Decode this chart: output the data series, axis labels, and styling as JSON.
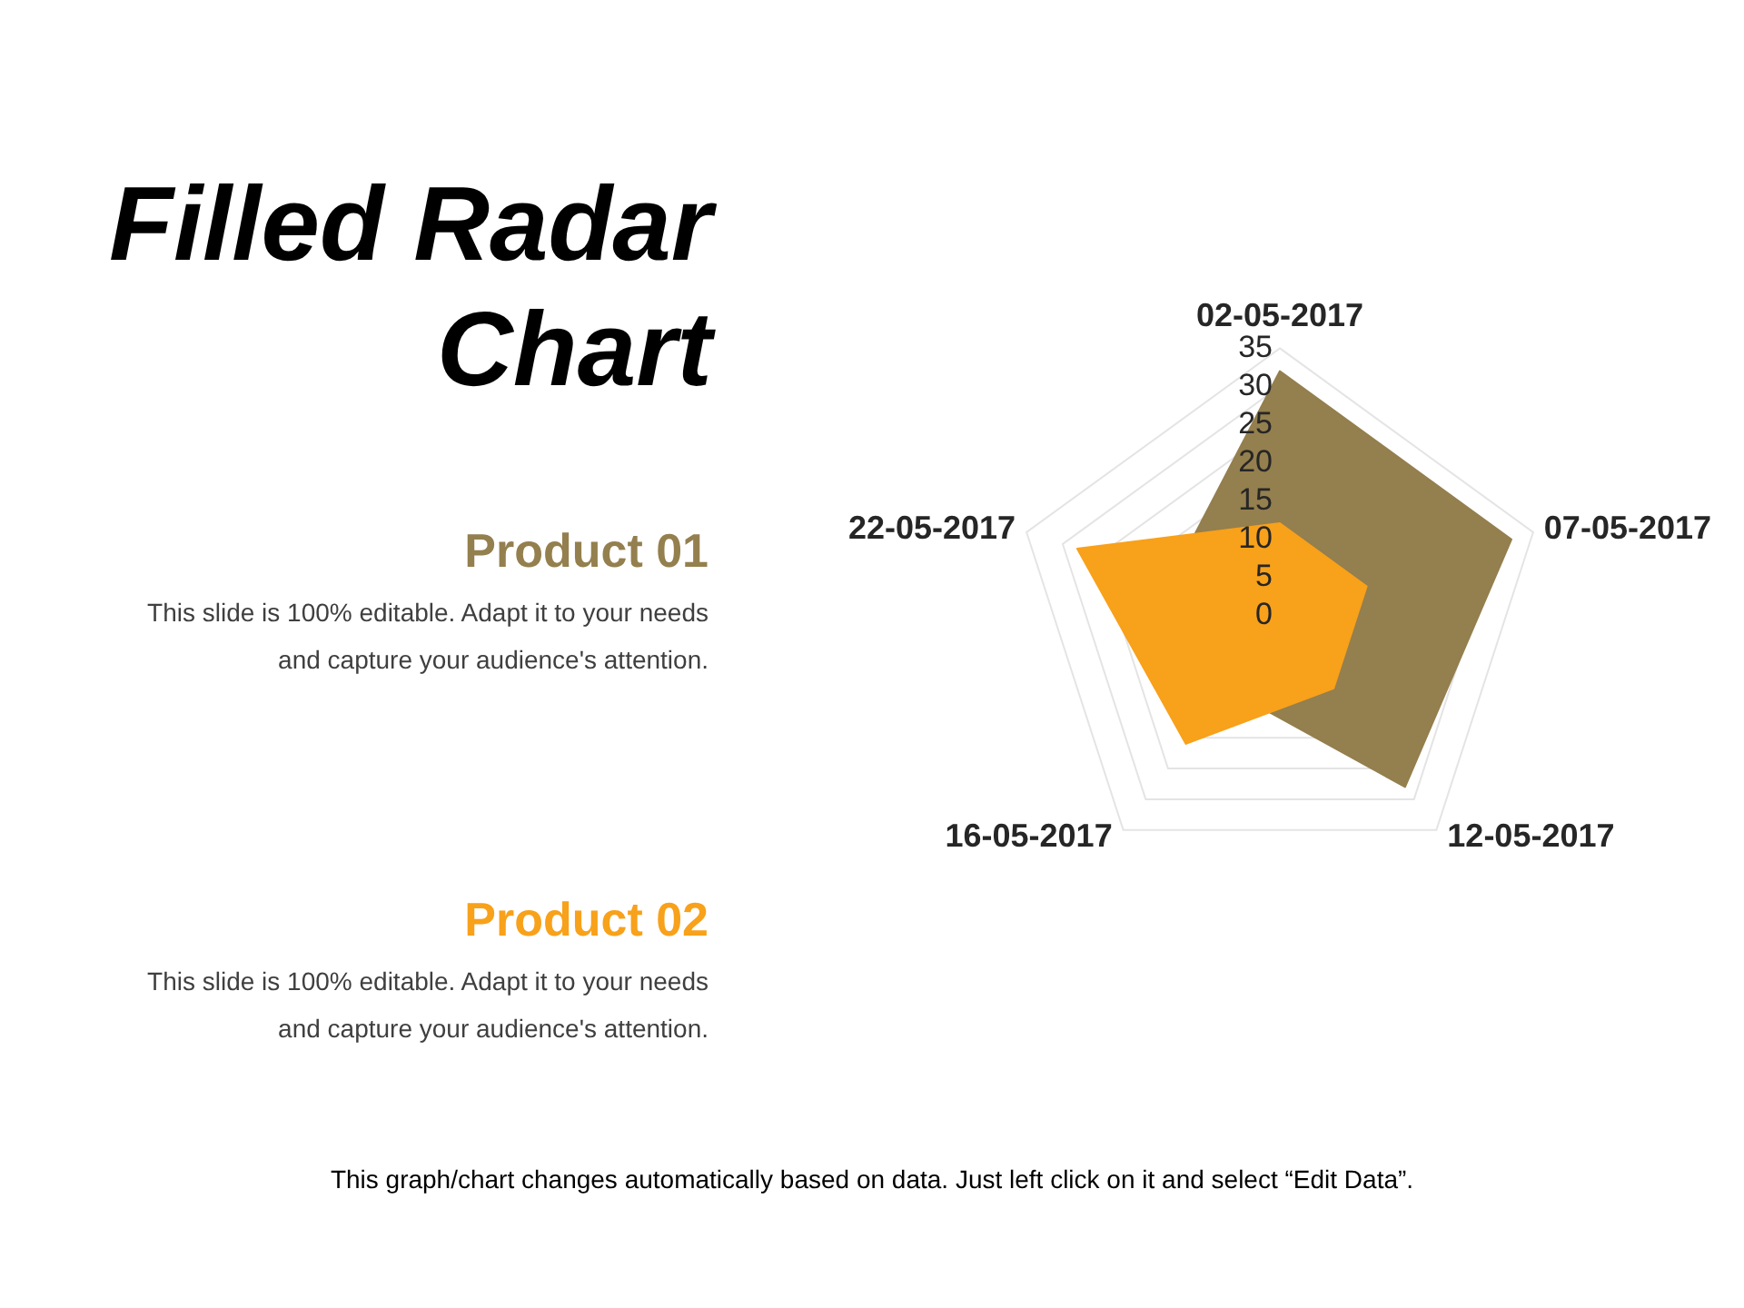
{
  "chart_data": {
    "type": "radar",
    "title": "Filled Radar Chart",
    "categories": [
      "02-05-2017",
      "07-05-2017",
      "12-05-2017",
      "16-05-2017",
      "22-05-2017"
    ],
    "series": [
      {
        "name": "Product 01",
        "color": "#947f4e",
        "values": [
          32,
          32,
          28,
          12,
          15
        ]
      },
      {
        "name": "Product 02",
        "color": "#f8a11a",
        "values": [
          12,
          12,
          12,
          21,
          28
        ]
      }
    ],
    "ylim": [
      0,
      35
    ],
    "yticks": [
      0,
      5,
      10,
      15,
      20,
      25,
      30,
      35
    ],
    "grid": true,
    "legend": "left",
    "annotations": [
      "This slide is 100% editable. Adapt it to your needs and capture your audience's attention.",
      "This slide is 100% editable. Adapt it to your needs and capture your audience's attention.",
      "This graph/chart changes automatically based on data. Just left click on it and select “Edit Data”."
    ]
  }
}
